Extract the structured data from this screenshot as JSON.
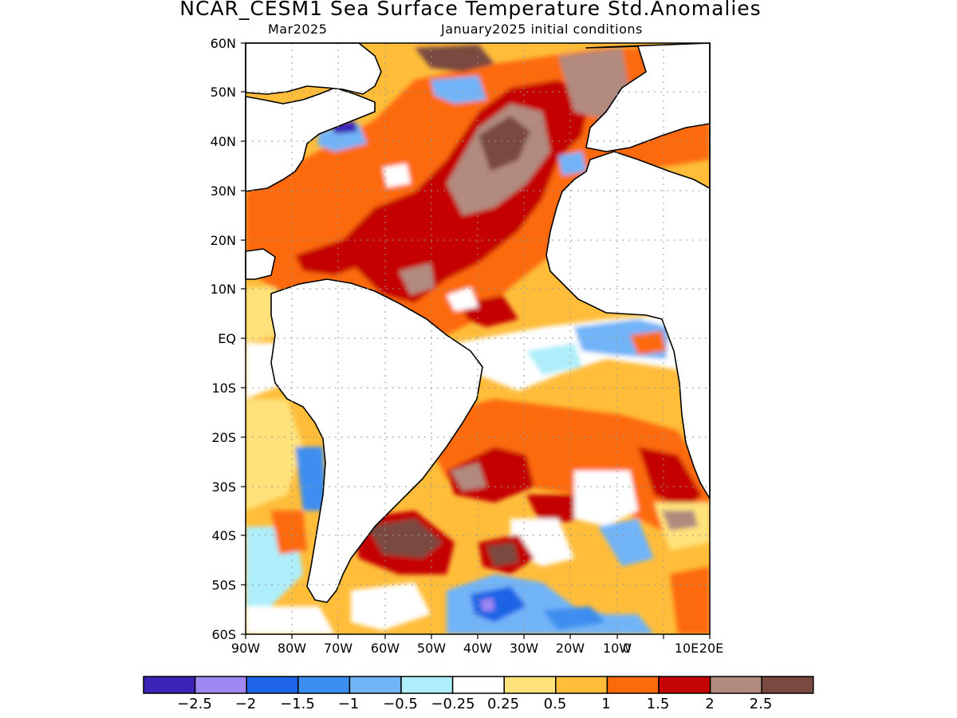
{
  "title": "NCAR_CESM1 Sea Surface Temperature Std.Anomalies",
  "forecast_month": "Mar2025",
  "initial_conditions": "January2025 initial conditions",
  "lat_labels": [
    "60N",
    "50N",
    "40N",
    "30N",
    "20N",
    "10N",
    "EQ",
    "10S",
    "20S",
    "30S",
    "40S",
    "50S",
    "60S"
  ],
  "lon_labels": [
    "90W",
    "80W",
    "70W",
    "60W",
    "50W",
    "40W",
    "30W",
    "20W",
    "10W",
    "0",
    "10E",
    "20E"
  ],
  "colorbar": {
    "colors": [
      "#3d23b8",
      "#9f87f4",
      "#1e64e6",
      "#3c8ef0",
      "#72b4f8",
      "#aeeefa",
      "#ffffff",
      "#ffe27a",
      "#ffbd3a",
      "#fd6a0c",
      "#c40404",
      "#b28a7e",
      "#7a4a40"
    ],
    "labels": [
      "−2.5",
      "−2",
      "−1.5",
      "−1",
      "−0.5",
      "−0.25",
      "0.25",
      "0.5",
      "1",
      "1.5",
      "2",
      "2.5"
    ]
  }
}
